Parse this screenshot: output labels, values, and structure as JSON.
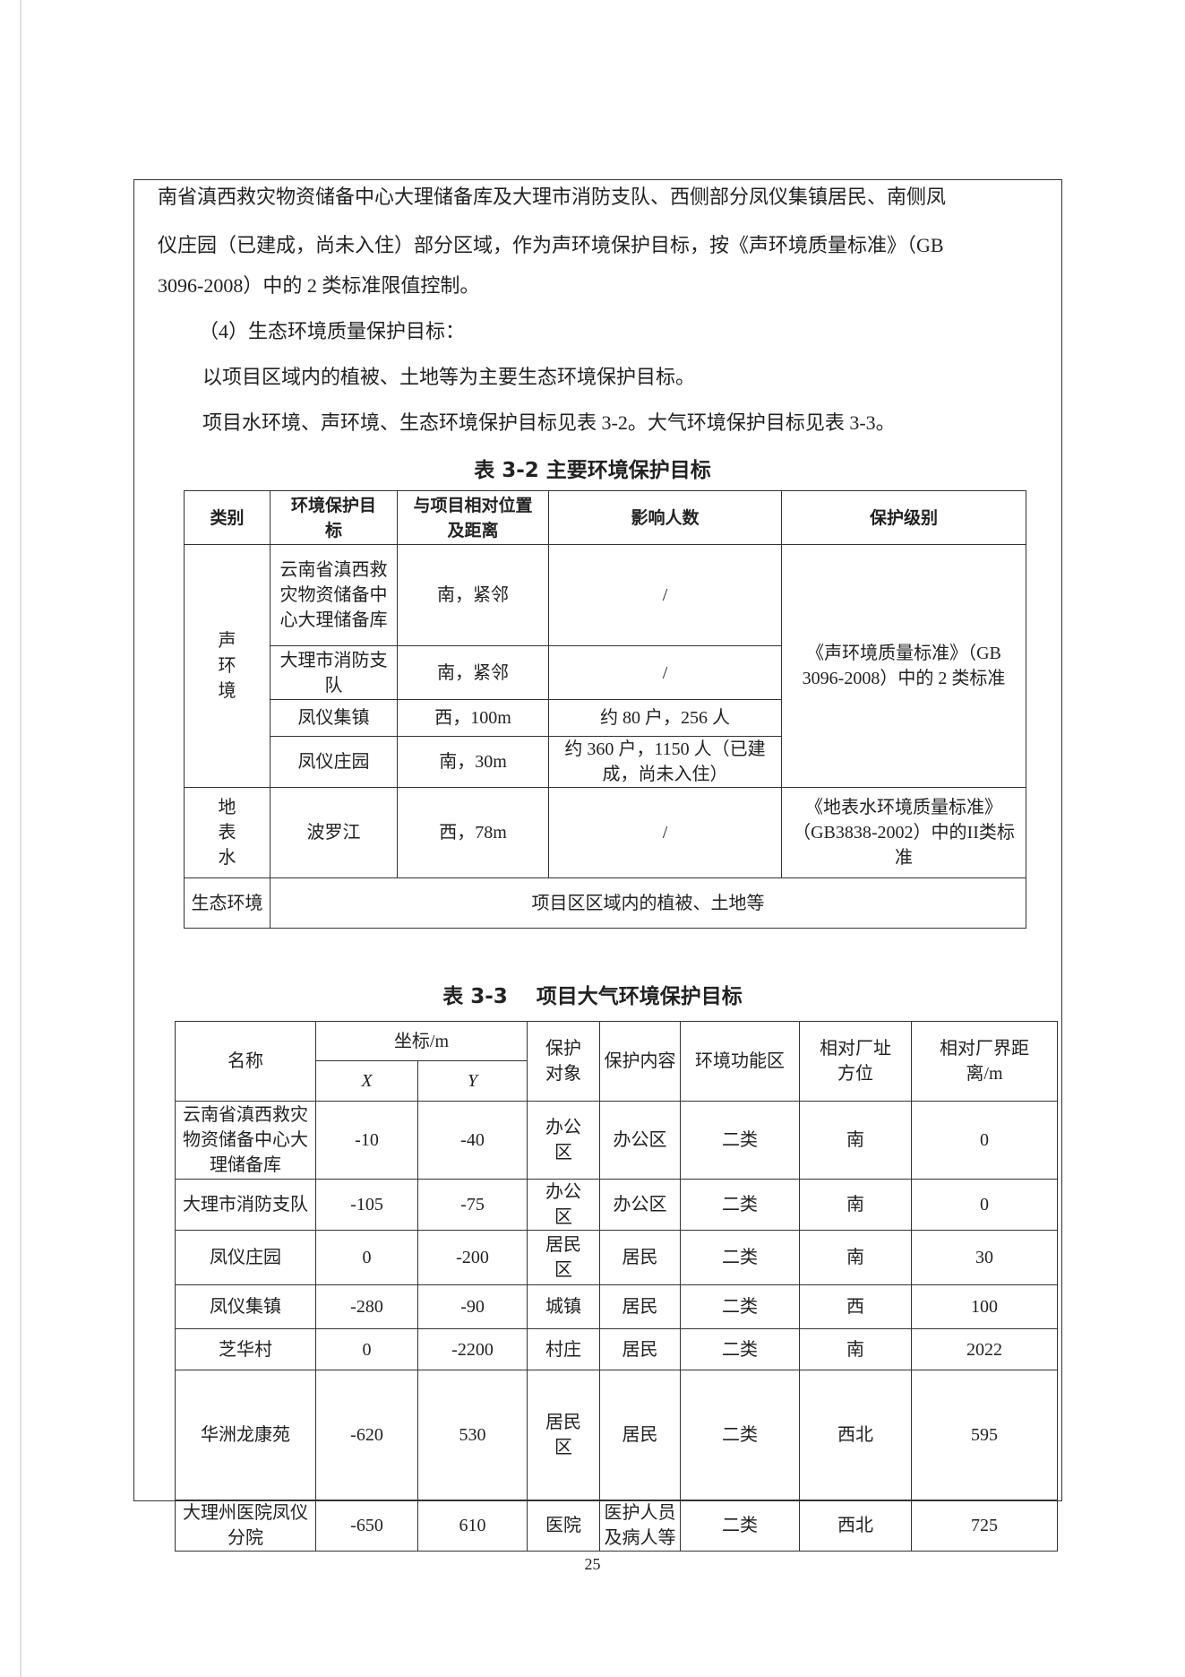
{
  "paragraphs": [
    "南省滇西救灾物资储备中心大理储备库及大理市消防支队、西侧部分凤仪集镇居民、南侧凤",
    "仪庄园（已建成，尚未入住）部分区域，作为声环境保护目标，按《声环境质量标准》（GB",
    "3096-2008）中的 2 类标准限值控制。",
    "（4）生态环境质量保护目标：",
    "以项目区域内的植被、土地等为主要生态环境保护目标。",
    "项目水环境、声环境、生态环境保护目标见表 3-2。大气环境保护目标见表 3-3。"
  ],
  "table32": {
    "title": "表 3-2 主要环境保护目标",
    "headers": [
      "类别",
      "环境保护目标",
      "与项目相对位置及距离",
      "影响人数",
      "保护级别"
    ],
    "groups": {
      "sound": "声环境",
      "surface_water": "地表水",
      "ecology": "生态环境"
    },
    "rows": [
      {
        "target": "云南省滇西救灾物资储备中心大理储备库",
        "position": "南，紧邻",
        "people": "/"
      },
      {
        "target": "大理市消防支队",
        "position": "南，紧邻",
        "people": "/"
      },
      {
        "target": "凤仪集镇",
        "position": "西，100m",
        "people": "约 80 户，256 人"
      },
      {
        "target": "凤仪庄园",
        "position": "南，30m",
        "people": "约 360 户，1150 人（已建成，尚未入住）"
      },
      {
        "target": "波罗江",
        "position": "西，78m",
        "people": "/"
      }
    ],
    "sound_level": "《声环境质量标准》（GB 3096-2008）中的 2 类标准",
    "water_level": "《地表水环境质量标准》（GB3838-2002）中的II类标准",
    "ecology_text": "项目区区域内的植被、土地等"
  },
  "table33": {
    "title": "表 3-3    项目大气环境保护目标",
    "headers": {
      "name": "名称",
      "coord": "坐标/m",
      "x": "X",
      "y": "Y",
      "object": "保护对象",
      "content": "保护内容",
      "zone": "环境功能区",
      "direction": "相对厂址方位",
      "distance": "相对厂界距离/m"
    },
    "rows": [
      {
        "name": "云南省滇西救灾物资储备中心大理储备库",
        "x": "-10",
        "y": "-40",
        "object": "办公区",
        "content": "办公区",
        "zone": "二类",
        "direction": "南",
        "distance": "0"
      },
      {
        "name": "大理市消防支队",
        "x": "-105",
        "y": "-75",
        "object": "办公区",
        "content": "办公区",
        "zone": "二类",
        "direction": "南",
        "distance": "0"
      },
      {
        "name": "凤仪庄园",
        "x": "0",
        "y": "-200",
        "object": "居民区",
        "content": "居民",
        "zone": "二类",
        "direction": "南",
        "distance": "30"
      },
      {
        "name": "凤仪集镇",
        "x": "-280",
        "y": "-90",
        "object": "城镇",
        "content": "居民",
        "zone": "二类",
        "direction": "西",
        "distance": "100"
      },
      {
        "name": "芝华村",
        "x": "0",
        "y": "-2200",
        "object": "村庄",
        "content": "居民",
        "zone": "二类",
        "direction": "南",
        "distance": "2022"
      },
      {
        "name": "华洲龙康苑",
        "x": "-620",
        "y": "530",
        "object": "居民区",
        "content": "居民",
        "zone": "二类",
        "direction": "西北",
        "distance": "595"
      },
      {
        "name": "大理州医院凤仪分院",
        "x": "-650",
        "y": "610",
        "object": "医院",
        "content": "医护人员及病人等",
        "zone": "二类",
        "direction": "西北",
        "distance": "725"
      }
    ]
  },
  "page_number": "25"
}
